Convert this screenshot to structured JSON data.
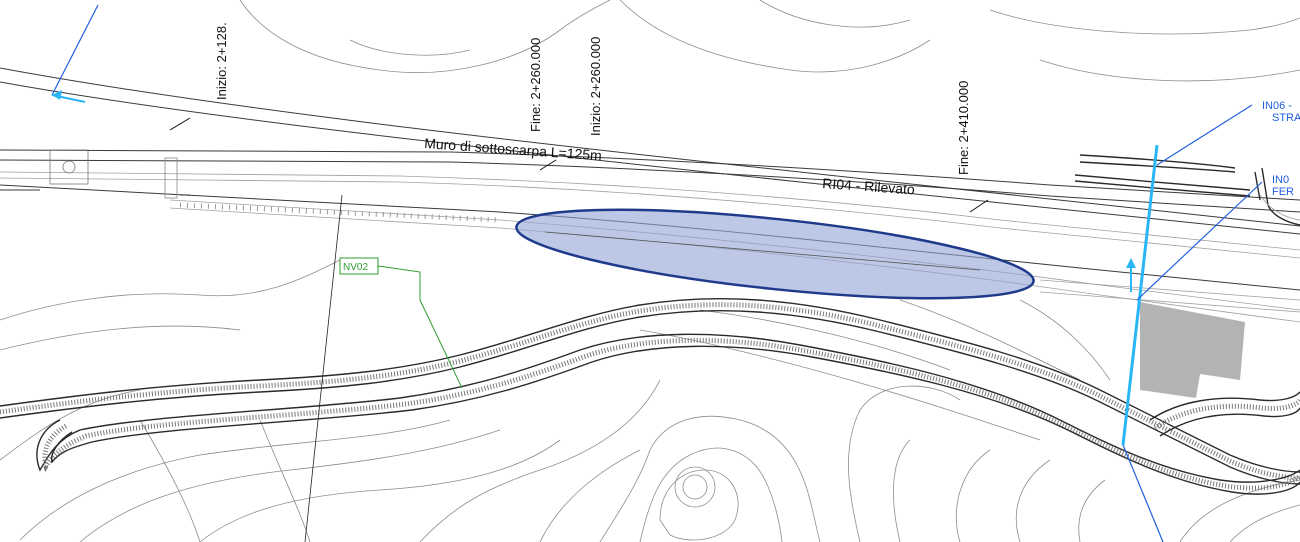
{
  "drawing": {
    "chainage_labels": {
      "inizio_left": "Inizio: 2+128.",
      "fine_260": "Fine: 2+260.000",
      "inizio_260": "Inizio: 2+260.000",
      "fine_410": "Fine: 2+410.000"
    },
    "structure_labels": {
      "muro": "Muro di sottoscarpa L=125m",
      "ri04": "RI04 - Rilevato"
    },
    "nv_tag": "NV02",
    "blue_labels": {
      "in06_line1": "IN06 -",
      "in06_line2": "STRA",
      "right_line1": "IN0",
      "right_line2": "FER"
    },
    "colors": {
      "highlight_fill": "#8fa3d6",
      "highlight_stroke": "#1f3a8a",
      "section_line": "#29b6f6",
      "leader_blue": "#1f5fe0",
      "tag_green": "#2e9e2e",
      "building_gray": "#b3b3b3"
    },
    "icons": [
      "section-arrow-icon",
      "north-arrow-icon"
    ]
  }
}
